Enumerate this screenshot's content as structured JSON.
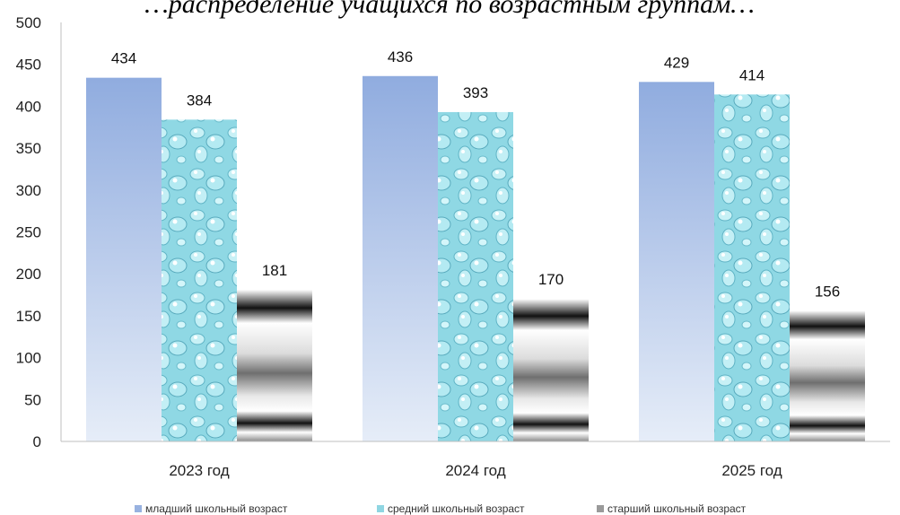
{
  "chart_data": {
    "type": "bar",
    "title": "…распределение учащихся по возрастным группам…",
    "categories": [
      "2023 год",
      "2024 год",
      "2025 год"
    ],
    "series": [
      {
        "name": "младший школьный возраст",
        "values": [
          434,
          436,
          429
        ],
        "color": "#98b2e0"
      },
      {
        "name": "средний школьный возраст",
        "values": [
          384,
          393,
          414
        ],
        "color": "#8fd6e2"
      },
      {
        "name": "старший школьный возраст",
        "values": [
          181,
          170,
          156
        ],
        "color": "#9a9a9a"
      }
    ],
    "ylim": [
      0,
      500
    ],
    "yticks": [
      0,
      50,
      100,
      150,
      200,
      250,
      300,
      350,
      400,
      450,
      500
    ],
    "grid": false,
    "legend_position": "bottom"
  }
}
